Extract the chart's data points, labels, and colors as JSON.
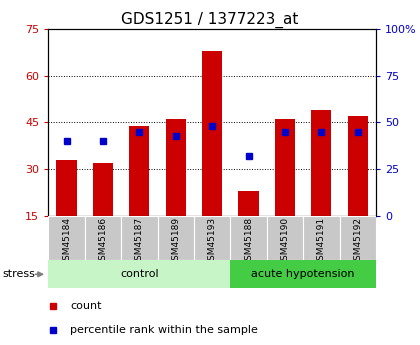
{
  "title": "GDS1251 / 1377223_at",
  "categories": [
    "GSM45184",
    "GSM45186",
    "GSM45187",
    "GSM45189",
    "GSM45193",
    "GSM45188",
    "GSM45190",
    "GSM45191",
    "GSM45192"
  ],
  "count_values": [
    33,
    32,
    44,
    46,
    68,
    23,
    46,
    49,
    47
  ],
  "percentile_values": [
    40,
    40,
    45,
    43,
    48,
    32,
    45,
    45,
    45
  ],
  "groups": [
    {
      "label": "control",
      "start": 0,
      "end": 5,
      "color": "#c8f5c8"
    },
    {
      "label": "acute hypotension",
      "start": 5,
      "end": 9,
      "color": "#44cc44"
    }
  ],
  "ylim_left": [
    15,
    75
  ],
  "ylim_right": [
    0,
    100
  ],
  "yticks_left": [
    15,
    30,
    45,
    60,
    75
  ],
  "yticks_right": [
    0,
    25,
    50,
    75,
    100
  ],
  "left_tick_labels": [
    "15",
    "30",
    "45",
    "60",
    "75"
  ],
  "right_tick_labels": [
    "0",
    "25",
    "50",
    "75",
    "100%"
  ],
  "bar_color": "#cc0000",
  "dot_color": "#0000cc",
  "background_color": "#ffffff",
  "tick_bg_color": "#c8c8c8",
  "stress_label": "stress",
  "legend_count": "count",
  "legend_pct": "percentile rank within the sample",
  "title_fontsize": 11,
  "axis_fontsize": 8,
  "bar_width": 0.55
}
